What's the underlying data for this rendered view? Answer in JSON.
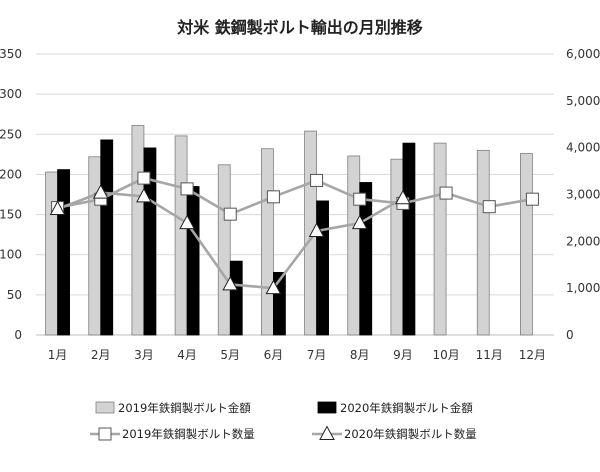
{
  "chart_data": {
    "type": "bar",
    "title": "対米 鉄鋼製ボルト輸出の月別推移",
    "categories": [
      "1月",
      "2月",
      "3月",
      "4月",
      "5月",
      "6月",
      "7月",
      "8月",
      "9月",
      "10月",
      "11月",
      "12月"
    ],
    "y_left_ticks": [
      "0",
      "50",
      "100",
      "150",
      "200",
      "250",
      "300",
      "350"
    ],
    "y_right_ticks": [
      "0",
      "1,000",
      "2,000",
      "3,000",
      "4,000",
      "5,000",
      "6,000"
    ],
    "ylim_left": [
      0,
      350
    ],
    "ylim_right": [
      0,
      6000
    ],
    "grid": true,
    "legend_position": "bottom",
    "series": [
      {
        "name": "2019年鉄鋼製ボルト金額",
        "kind": "bar",
        "axis": "left",
        "color": "#d3d3d3",
        "values": [
          203,
          222,
          261,
          248,
          212,
          232,
          254,
          223,
          219,
          239,
          230,
          226
        ]
      },
      {
        "name": "2020年鉄鋼製ボルト金額",
        "kind": "bar",
        "axis": "left",
        "color": "#000000",
        "values": [
          206,
          243,
          233,
          185,
          92,
          78,
          167,
          190,
          239,
          null,
          null,
          null
        ]
      },
      {
        "name": "2019年鉄鋼製ボルト数量",
        "kind": "line",
        "axis": "right",
        "color": "#a6a6a6",
        "marker": "square",
        "values": [
          2720,
          2900,
          3350,
          3120,
          2580,
          2950,
          3300,
          2900,
          2810,
          3030,
          2740,
          2900
        ]
      },
      {
        "name": "2020年鉄鋼製ボルト数量",
        "kind": "line",
        "axis": "right",
        "color": "#a6a6a6",
        "marker": "triangle",
        "values": [
          2690,
          3040,
          2960,
          2390,
          1080,
          1000,
          2220,
          2390,
          2920,
          null,
          null,
          null
        ]
      }
    ]
  }
}
